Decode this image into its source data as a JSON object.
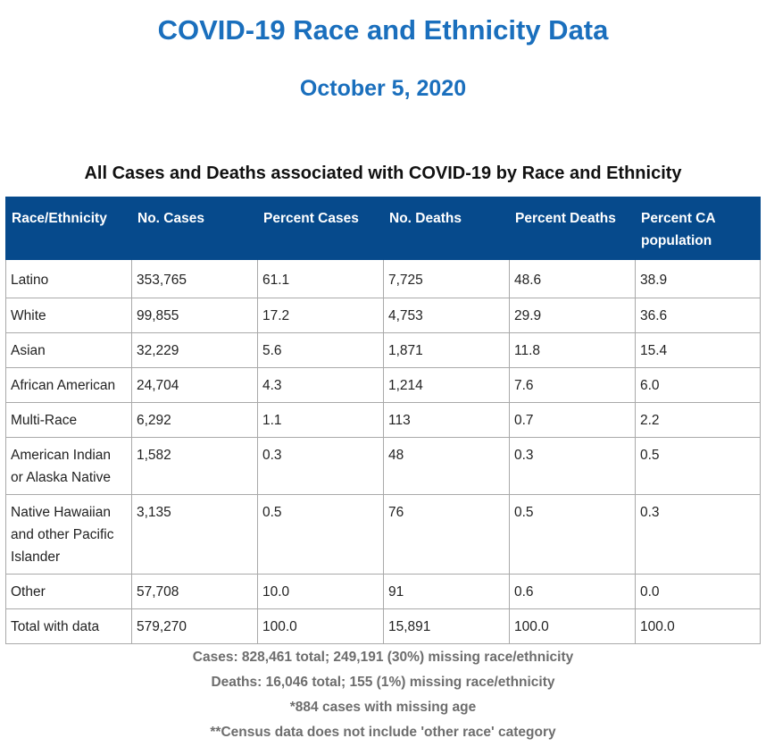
{
  "page": {
    "title": "COVID-19 Race and Ethnicity Data",
    "date": "October 5, 2020",
    "table_title": "All Cases and Deaths associated with COVID-19 by Race and Ethnicity"
  },
  "table": {
    "headers": [
      "Race/Ethnicity",
      "No. Cases",
      "Percent Cases",
      "No. Deaths",
      "Percent Deaths",
      "Percent CA population"
    ],
    "rows": [
      [
        "Latino",
        "353,765",
        "61.1",
        "7,725",
        "48.6",
        "38.9"
      ],
      [
        "White",
        "99,855",
        "17.2",
        "4,753",
        "29.9",
        "36.6"
      ],
      [
        "Asian",
        "32,229",
        "5.6",
        "1,871",
        "11.8",
        "15.4"
      ],
      [
        "African American",
        "24,704",
        "4.3",
        "1,214",
        "7.6",
        "6.0"
      ],
      [
        "Multi-Race",
        "6,292",
        "1.1",
        "113",
        "0.7",
        "2.2"
      ],
      [
        "American Indian or Alaska Native",
        "1,582",
        "0.3",
        "48",
        "0.3",
        "0.5"
      ],
      [
        "Native Hawaiian and other Pacific Islander",
        "3,135",
        "0.5",
        "76",
        "0.5",
        "0.3"
      ],
      [
        "Other",
        "57,708",
        "10.0",
        "91",
        "0.6",
        "0.0"
      ],
      [
        "Total with data",
        "579,270",
        "100.0",
        "15,891",
        "100.0",
        "100.0"
      ]
    ]
  },
  "notes": {
    "cases": "Cases: 828,461 total; 249,191 (30%) missing race/ethnicity",
    "deaths": "Deaths: 16,046 total; 155 (1%) missing race/ethnicity",
    "age": "*884 cases with missing age",
    "census": "**Census data does not include 'other race' category"
  },
  "colors": {
    "title": "#1a6fbd",
    "header_bg": "#064a8c",
    "header_text": "#ffffff",
    "notes_text": "#6d6d6d"
  }
}
